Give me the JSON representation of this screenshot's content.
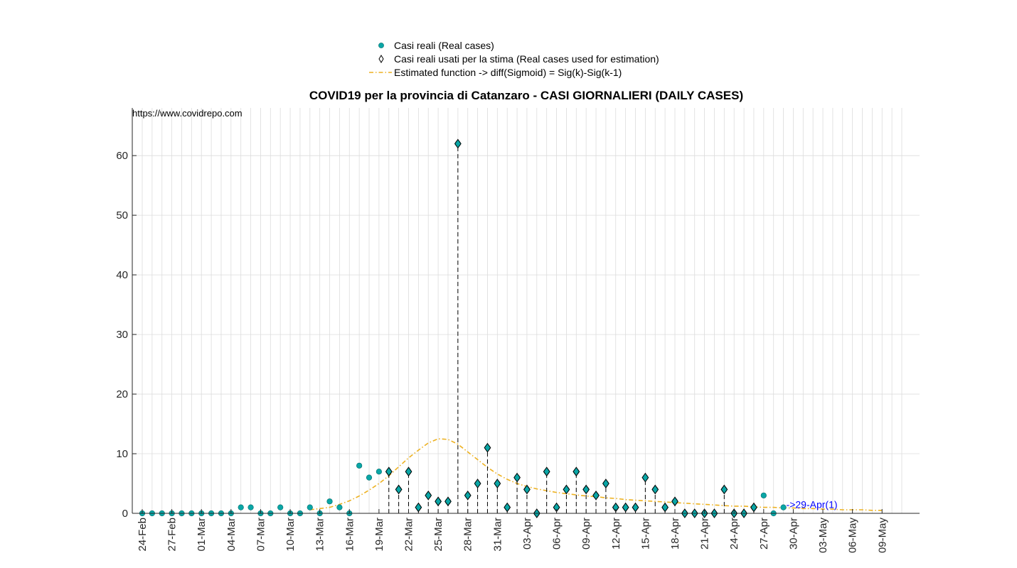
{
  "chart_data": {
    "type": "scatter",
    "title": "COVID19 per la provincia di Catanzaro - CASI GIORNALIERI (DAILY CASES)",
    "source_text": "https://www.covidrepo.com",
    "xlabel": "",
    "ylabel": "",
    "ylim": [
      0,
      68
    ],
    "yticks": [
      0,
      10,
      20,
      30,
      40,
      50,
      60
    ],
    "x_range": [
      "24-Feb",
      "11-May"
    ],
    "xtick_labels": [
      "24-Feb",
      "27-Feb",
      "01-Mar",
      "04-Mar",
      "07-Mar",
      "10-Mar",
      "13-Mar",
      "16-Mar",
      "19-Mar",
      "22-Mar",
      "25-Mar",
      "28-Mar",
      "31-Mar",
      "03-Apr",
      "06-Apr",
      "09-Apr",
      "12-Apr",
      "15-Apr",
      "18-Apr",
      "21-Apr",
      "24-Apr",
      "27-Apr",
      "30-Apr",
      "03-May",
      "06-May",
      "09-May"
    ],
    "grid": true,
    "legend_placement": "top-center",
    "colors": {
      "real": "#0aa6a6",
      "estimated": "#edb120",
      "stem": "#000000",
      "annotation": "#0000ff"
    },
    "series": [
      {
        "name": "Casi reali (Real cases)",
        "marker": "circle",
        "x": [
          "24-Feb",
          "25-Feb",
          "26-Feb",
          "27-Feb",
          "28-Feb",
          "29-Feb",
          "01-Mar",
          "02-Mar",
          "03-Mar",
          "04-Mar",
          "05-Mar",
          "06-Mar",
          "07-Mar",
          "08-Mar",
          "09-Mar",
          "10-Mar",
          "11-Mar",
          "12-Mar",
          "13-Mar",
          "14-Mar",
          "15-Mar",
          "16-Mar",
          "17-Mar",
          "18-Mar",
          "19-Mar",
          "20-Mar",
          "21-Mar",
          "22-Mar",
          "23-Mar",
          "24-Mar",
          "25-Mar",
          "26-Mar",
          "27-Mar",
          "28-Mar",
          "29-Mar",
          "30-Mar",
          "31-Mar",
          "01-Apr",
          "02-Apr",
          "03-Apr",
          "04-Apr",
          "05-Apr",
          "06-Apr",
          "07-Apr",
          "08-Apr",
          "09-Apr",
          "10-Apr",
          "11-Apr",
          "12-Apr",
          "13-Apr",
          "14-Apr",
          "15-Apr",
          "16-Apr",
          "17-Apr",
          "18-Apr",
          "19-Apr",
          "20-Apr",
          "21-Apr",
          "22-Apr",
          "23-Apr",
          "24-Apr",
          "25-Apr",
          "26-Apr",
          "27-Apr",
          "28-Apr",
          "29-Apr"
        ],
        "y": [
          0,
          0,
          0,
          0,
          0,
          0,
          0,
          0,
          0,
          0,
          1,
          1,
          0,
          0,
          1,
          0,
          0,
          1,
          0,
          2,
          1,
          0,
          8,
          6,
          7,
          7,
          4,
          7,
          1,
          3,
          2,
          2,
          62,
          3,
          5,
          11,
          5,
          1,
          6,
          4,
          0,
          7,
          1,
          4,
          7,
          4,
          3,
          5,
          1,
          1,
          1,
          6,
          4,
          1,
          2,
          0,
          0,
          0,
          0,
          4,
          0,
          0,
          1,
          3,
          0,
          1
        ]
      },
      {
        "name": "Casi reali usati per la stima (Real cases used for estimation)",
        "marker": "diamond",
        "x": [
          "20-Mar",
          "21-Mar",
          "22-Mar",
          "23-Mar",
          "24-Mar",
          "25-Mar",
          "26-Mar",
          "27-Mar",
          "28-Mar",
          "29-Mar",
          "30-Mar",
          "31-Mar",
          "01-Apr",
          "02-Apr",
          "03-Apr",
          "04-Apr",
          "05-Apr",
          "06-Apr",
          "07-Apr",
          "08-Apr",
          "09-Apr",
          "10-Apr",
          "11-Apr",
          "12-Apr",
          "13-Apr",
          "14-Apr",
          "15-Apr",
          "16-Apr",
          "17-Apr",
          "18-Apr",
          "19-Apr",
          "20-Apr",
          "21-Apr",
          "22-Apr",
          "23-Apr",
          "24-Apr",
          "25-Apr",
          "26-Apr"
        ],
        "y": [
          7,
          4,
          7,
          1,
          3,
          2,
          2,
          62,
          3,
          5,
          11,
          5,
          1,
          6,
          4,
          0,
          7,
          1,
          4,
          7,
          4,
          3,
          5,
          1,
          1,
          1,
          6,
          4,
          1,
          2,
          0,
          0,
          0,
          0,
          4,
          0,
          0,
          1
        ]
      },
      {
        "name": "Estimated function -> diff(Sigmoid) = Sig(k)-Sig(k-1)",
        "marker": "dash-dot line",
        "x": [
          "12-Mar",
          "13-Mar",
          "14-Mar",
          "15-Mar",
          "16-Mar",
          "17-Mar",
          "18-Mar",
          "19-Mar",
          "20-Mar",
          "21-Mar",
          "22-Mar",
          "23-Mar",
          "24-Mar",
          "25-Mar",
          "26-Mar",
          "27-Mar",
          "28-Mar",
          "29-Mar",
          "30-Mar",
          "31-Mar",
          "01-Apr",
          "02-Apr",
          "03-Apr",
          "04-Apr",
          "05-Apr",
          "06-Apr",
          "07-Apr",
          "08-Apr",
          "09-Apr",
          "10-Apr",
          "11-Apr",
          "12-Apr",
          "13-Apr",
          "14-Apr",
          "15-Apr",
          "16-Apr",
          "17-Apr",
          "18-Apr",
          "19-Apr",
          "20-Apr",
          "21-Apr",
          "22-Apr",
          "23-Apr",
          "24-Apr",
          "25-Apr",
          "26-Apr",
          "27-Apr",
          "28-Apr",
          "29-Apr",
          "30-Apr",
          "01-May",
          "02-May",
          "03-May",
          "04-May",
          "05-May",
          "06-May",
          "07-May",
          "08-May",
          "09-May"
        ],
        "y": [
          0.6,
          0.8,
          1.0,
          1.5,
          2.1,
          2.9,
          3.9,
          5.0,
          6.3,
          7.8,
          9.3,
          10.6,
          11.8,
          12.5,
          12.4,
          11.6,
          10.3,
          9.0,
          7.7,
          6.6,
          5.7,
          5.0,
          4.5,
          4.1,
          3.8,
          3.5,
          3.3,
          3.1,
          2.9,
          2.8,
          2.6,
          2.5,
          2.3,
          2.2,
          2.1,
          2.0,
          1.9,
          1.8,
          1.7,
          1.6,
          1.5,
          1.4,
          1.3,
          1.2,
          1.2,
          1.1,
          1.0,
          1.0,
          0.9,
          0.9,
          0.8,
          0.8,
          0.7,
          0.7,
          0.6,
          0.6,
          0.6,
          0.5,
          0.5
        ]
      }
    ],
    "annotation": {
      "text": "->29-Apr(1)",
      "x": "29-Apr",
      "y": 1
    }
  }
}
